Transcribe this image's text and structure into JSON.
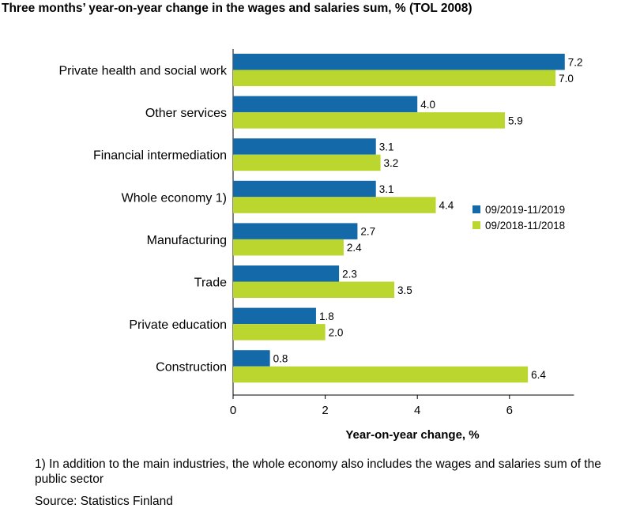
{
  "chart_data": {
    "type": "bar",
    "orientation": "horizontal",
    "title": "Three months’ year-on-year change in the wages and salaries sum, % (TOL 2008)",
    "xlabel": "Year-on-year change, %",
    "xlim": [
      0,
      7.4
    ],
    "xticks": [
      0,
      2,
      4,
      6
    ],
    "categories": [
      "Private health and social work",
      "Other services",
      "Financial intermediation",
      "Whole economy 1)",
      "Manufacturing",
      "Trade",
      "Private education",
      "Construction"
    ],
    "series": [
      {
        "name": "09/2019-11/2019",
        "color": "#1469a8",
        "values": [
          7.2,
          4.0,
          3.1,
          3.1,
          2.7,
          2.3,
          1.8,
          0.8
        ],
        "labels": [
          "7.2",
          "4.0",
          "3.1",
          "3.1",
          "2.7",
          "2.3",
          "1.8",
          "0.8"
        ]
      },
      {
        "name": "09/2018-11/2018",
        "color": "#bcd630",
        "values": [
          7.0,
          5.9,
          3.2,
          4.4,
          2.4,
          3.5,
          2.0,
          6.4
        ],
        "labels": [
          "7.0",
          "5.9",
          "3.2",
          "4.4",
          "2.4",
          "3.5",
          "2.0",
          "6.4"
        ]
      }
    ],
    "legend_position": "right"
  },
  "footnote": "1) In addition to the main industries, the whole economy also includes the wages and salaries sum of the public sector",
  "source": "Source: Statistics Finland"
}
